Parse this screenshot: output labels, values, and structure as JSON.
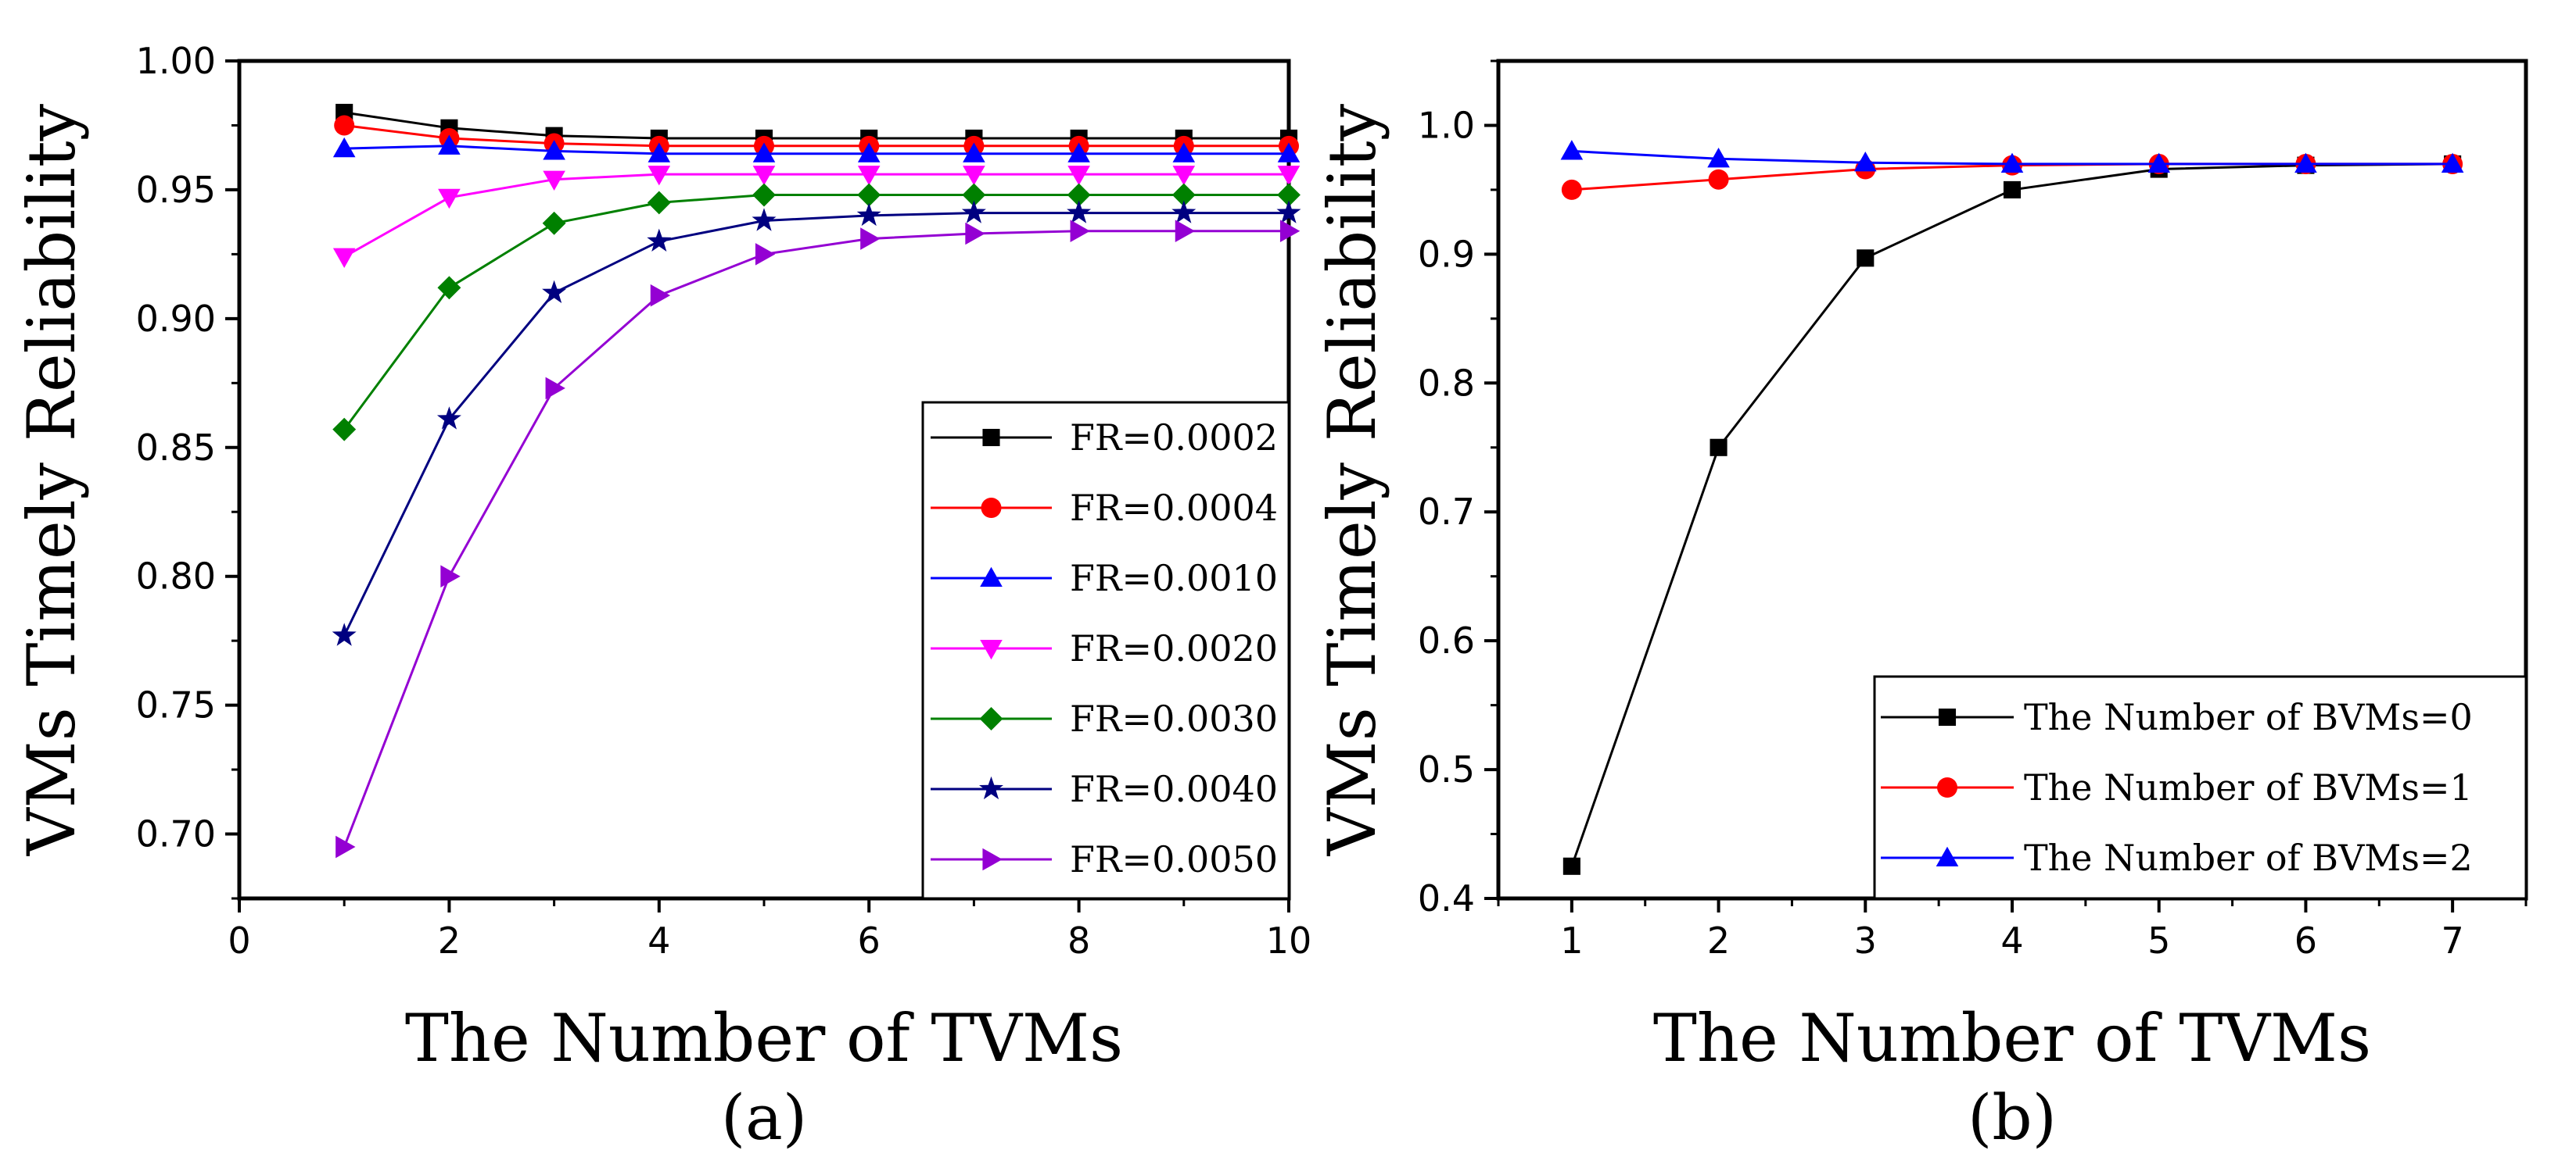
{
  "chart_data": [
    {
      "type": "line",
      "panel_label": "(a)",
      "xlabel": "The Number of TVMs",
      "ylabel": "VMs Timely Reliability",
      "xlim": [
        0,
        10
      ],
      "ylim": [
        0.675,
        1.0
      ],
      "xticks": [
        "0",
        "2",
        "4",
        "6",
        "8",
        "10"
      ],
      "yticks": [
        "0.70",
        "0.75",
        "0.80",
        "0.85",
        "0.90",
        "0.95",
        "1.00"
      ],
      "legend_position": "lower-right",
      "x": [
        1,
        2,
        3,
        4,
        5,
        6,
        7,
        8,
        9,
        10
      ],
      "series": [
        {
          "name": "FR=0.0002",
          "color": "#000000",
          "marker": "square",
          "values": [
            0.98,
            0.974,
            0.971,
            0.97,
            0.97,
            0.97,
            0.97,
            0.97,
            0.97,
            0.97
          ]
        },
        {
          "name": "FR=0.0004",
          "color": "#ff0000",
          "marker": "circle",
          "values": [
            0.975,
            0.97,
            0.968,
            0.967,
            0.967,
            0.967,
            0.967,
            0.967,
            0.967,
            0.967
          ]
        },
        {
          "name": "FR=0.0010",
          "color": "#0000ff",
          "marker": "triangle-up",
          "values": [
            0.966,
            0.967,
            0.965,
            0.964,
            0.964,
            0.964,
            0.964,
            0.964,
            0.964,
            0.964
          ]
        },
        {
          "name": "FR=0.0020",
          "color": "#ff00ff",
          "marker": "triangle-down",
          "values": [
            0.924,
            0.947,
            0.954,
            0.956,
            0.956,
            0.956,
            0.956,
            0.956,
            0.956,
            0.956
          ]
        },
        {
          "name": "FR=0.0030",
          "color": "#008000",
          "marker": "diamond",
          "values": [
            0.857,
            0.912,
            0.937,
            0.945,
            0.948,
            0.948,
            0.948,
            0.948,
            0.948,
            0.948
          ]
        },
        {
          "name": "FR=0.0040",
          "color": "#000080",
          "marker": "star",
          "values": [
            0.777,
            0.861,
            0.91,
            0.93,
            0.938,
            0.94,
            0.941,
            0.941,
            0.941,
            0.941
          ]
        },
        {
          "name": "FR=0.0050",
          "color": "#9400d3",
          "marker": "triangle-right",
          "values": [
            0.695,
            0.8,
            0.873,
            0.909,
            0.925,
            0.931,
            0.933,
            0.934,
            0.934,
            0.934
          ]
        }
      ]
    },
    {
      "type": "line",
      "panel_label": "(b)",
      "xlabel": "The Number of TVMs",
      "ylabel": "VMs Timely Reliability",
      "xlim": [
        0.5,
        7.5
      ],
      "ylim": [
        0.4,
        1.05
      ],
      "xticks": [
        "1",
        "2",
        "3",
        "4",
        "5",
        "6",
        "7"
      ],
      "yticks": [
        "0.4",
        "0.5",
        "0.6",
        "0.7",
        "0.8",
        "0.9",
        "1.0"
      ],
      "legend_position": "lower-right",
      "x": [
        1,
        2,
        3,
        4,
        5,
        6,
        7
      ],
      "series": [
        {
          "name": "The Number of BVMs=0",
          "color": "#000000",
          "marker": "square",
          "values": [
            0.425,
            0.75,
            0.897,
            0.95,
            0.966,
            0.969,
            0.97
          ]
        },
        {
          "name": "The Number of BVMs=1",
          "color": "#ff0000",
          "marker": "circle",
          "values": [
            0.95,
            0.958,
            0.966,
            0.969,
            0.97,
            0.97,
            0.97
          ]
        },
        {
          "name": "The Number of BVMs=2",
          "color": "#0000ff",
          "marker": "triangle-up",
          "values": [
            0.98,
            0.974,
            0.971,
            0.97,
            0.97,
            0.97,
            0.97
          ]
        }
      ]
    }
  ]
}
